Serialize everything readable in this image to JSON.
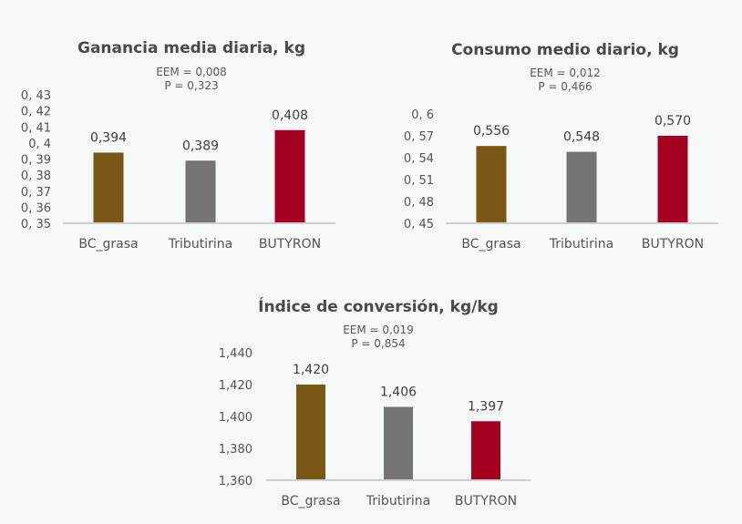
{
  "chart_data": [
    {
      "type": "bar",
      "title": "Ganancia media diaria, kg",
      "stats": {
        "eem": "EEM = 0,008",
        "p": "P = 0,323"
      },
      "categories": [
        "BC_grasa",
        "Tributirina",
        "BUTYRON"
      ],
      "values": [
        0.394,
        0.389,
        0.408
      ],
      "value_labels": [
        "0,394",
        "0,389",
        "0,408"
      ],
      "ylim": [
        0.35,
        0.43
      ],
      "yticks": [
        0.35,
        0.36,
        0.37,
        0.38,
        0.39,
        0.4,
        0.41,
        0.42,
        0.43
      ],
      "ytick_labels": [
        "0, 35",
        "0, 36",
        "0, 37",
        "0, 38",
        "0, 39",
        "0, 4",
        "0, 41",
        "0, 42",
        "0, 43"
      ],
      "colors": [
        "#7a5714",
        "#747474",
        "#a50021"
      ]
    },
    {
      "type": "bar",
      "title": "Consumo medio diario, kg",
      "stats": {
        "eem": "EEM = 0,012",
        "p": "P = 0,466"
      },
      "categories": [
        "BC_grasa",
        "Tributirina",
        "BUTYRON"
      ],
      "values": [
        0.556,
        0.548,
        0.57
      ],
      "value_labels": [
        "0,556",
        "0,548",
        "0,570"
      ],
      "ylim": [
        0.45,
        0.6
      ],
      "yticks": [
        0.45,
        0.48,
        0.51,
        0.54,
        0.57,
        0.6
      ],
      "ytick_labels": [
        "0, 45",
        "0, 48",
        "0, 51",
        "0, 54",
        "0, 57",
        "0, 6"
      ],
      "colors": [
        "#7a5714",
        "#747474",
        "#a50021"
      ]
    },
    {
      "type": "bar",
      "title": "Índice de conversión, kg/kg",
      "stats": {
        "eem": "EEM = 0,019",
        "p": "P = 0,854"
      },
      "categories": [
        "BC_grasa",
        "Tributirina",
        "BUTYRON"
      ],
      "values": [
        1.42,
        1.406,
        1.397
      ],
      "value_labels": [
        "1,420",
        "1,406",
        "1,397"
      ],
      "ylim": [
        1.36,
        1.44
      ],
      "yticks": [
        1.36,
        1.38,
        1.4,
        1.42,
        1.44
      ],
      "ytick_labels": [
        "1,360",
        "1,380",
        "1,400",
        "1,420",
        "1,440"
      ],
      "colors": [
        "#7a5714",
        "#747474",
        "#a50021"
      ]
    }
  ]
}
